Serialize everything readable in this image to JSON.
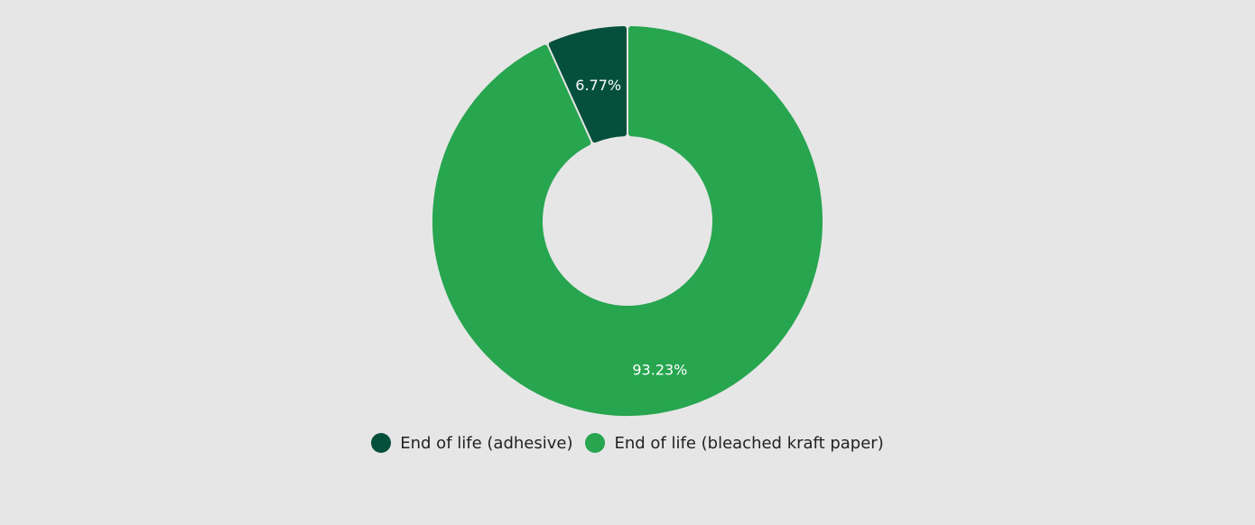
{
  "chart_data": {
    "type": "pie",
    "donut": true,
    "title": "",
    "categories": [
      "End of life (adhesive)",
      "End of life (bleached kraft paper)"
    ],
    "values": [
      6.77,
      93.23
    ],
    "labels": [
      "6.77%",
      "93.23%"
    ],
    "colors": [
      "#05503c",
      "#27a54f"
    ],
    "legend_placement": "bottom"
  }
}
